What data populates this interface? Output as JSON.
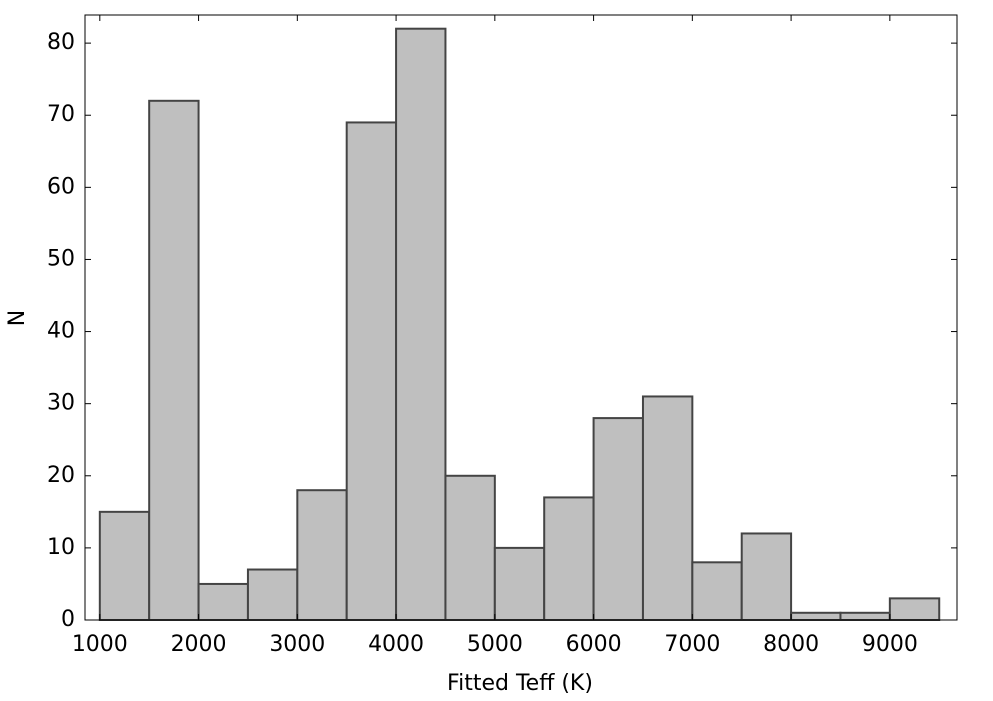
{
  "chart_data": {
    "type": "histogram",
    "bins": [
      1000,
      1500,
      2000,
      2500,
      3000,
      3500,
      4000,
      4500,
      5000,
      5500,
      6000,
      6500,
      7000,
      7500,
      8000,
      8500,
      9000,
      9500
    ],
    "values": [
      15,
      72,
      5,
      7,
      18,
      69,
      82,
      20,
      10,
      17,
      28,
      31,
      8,
      12,
      1,
      1,
      3
    ],
    "color": "#bfbfbf",
    "edgecolor": "#444444",
    "xlabel": "Fitted Teff (K)",
    "ylabel": "N",
    "xlim": [
      850,
      9680
    ],
    "ylim": [
      0,
      83.9
    ],
    "xticks": [
      1000,
      2000,
      3000,
      4000,
      5000,
      6000,
      7000,
      8000,
      9000
    ],
    "yticks": [
      0,
      10,
      20,
      30,
      40,
      50,
      60,
      70,
      80
    ],
    "grid": false
  }
}
